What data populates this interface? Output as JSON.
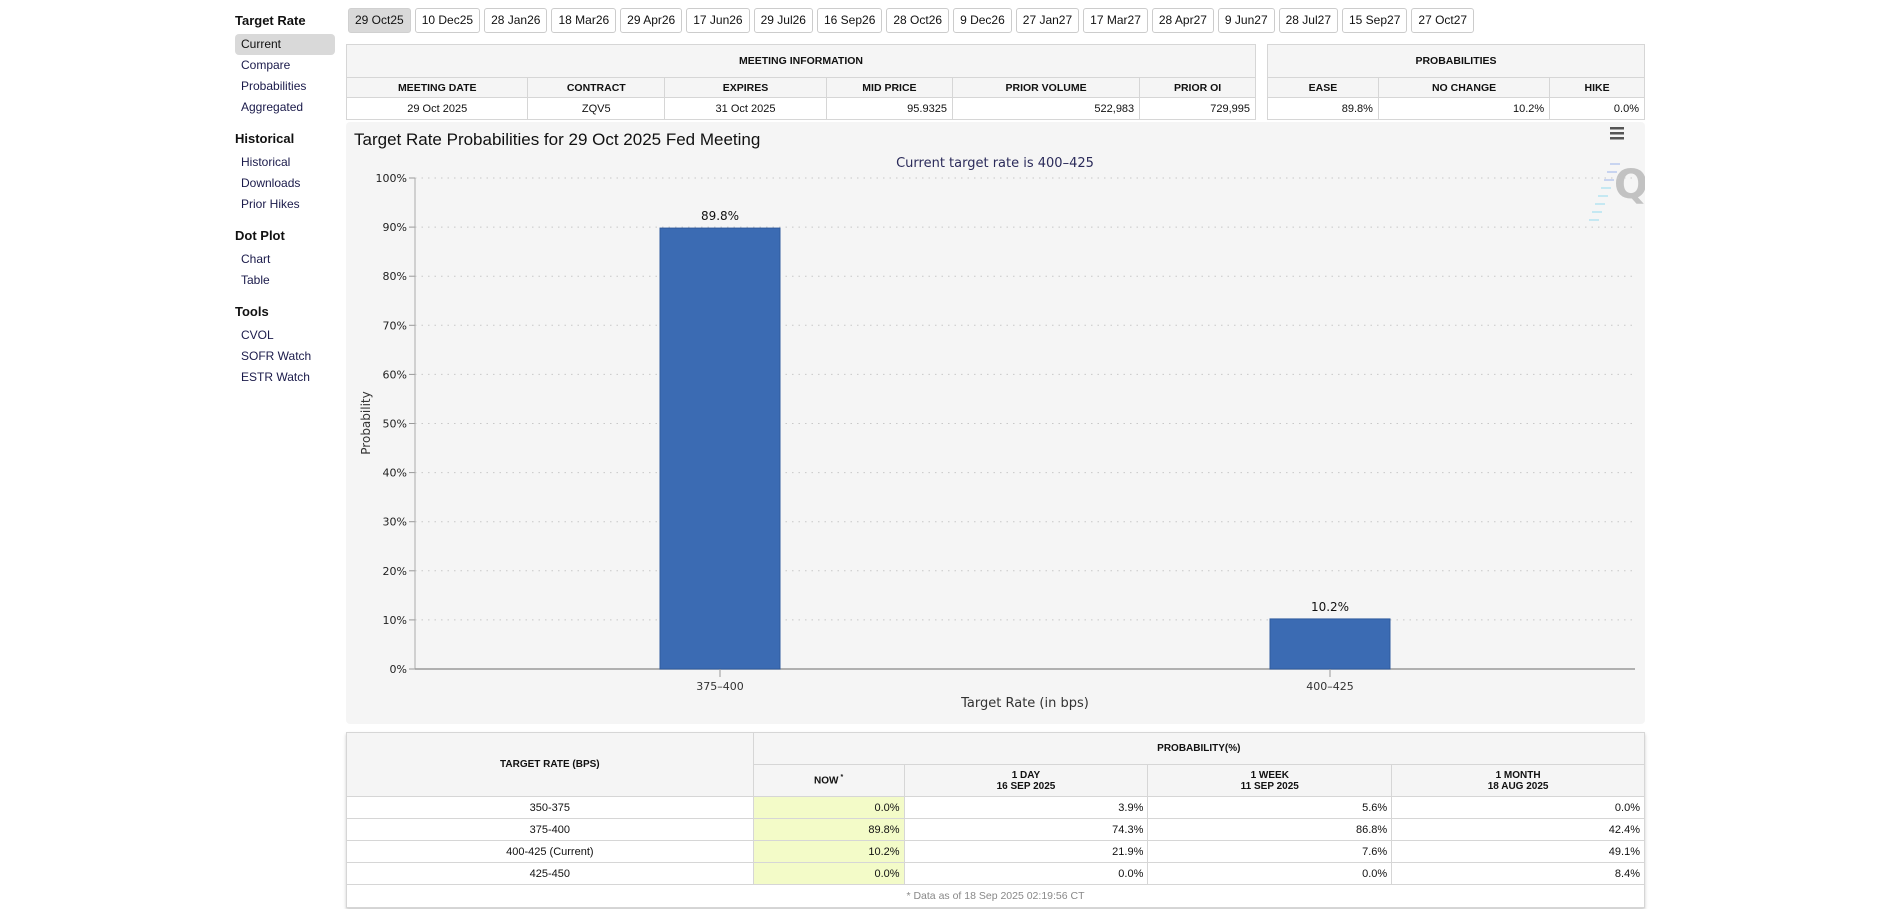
{
  "nav": {
    "groups": [
      {
        "title": "Target Rate",
        "items": [
          "Current",
          "Compare",
          "Probabilities",
          "Aggregated"
        ],
        "active": 0
      },
      {
        "title": "Historical",
        "items": [
          "Historical",
          "Downloads",
          "Prior Hikes"
        ]
      },
      {
        "title": "Dot Plot",
        "items": [
          "Chart",
          "Table"
        ]
      },
      {
        "title": "Tools",
        "items": [
          "CVOL",
          "SOFR Watch",
          "ESTR Watch"
        ]
      }
    ]
  },
  "tabs": [
    "29 Oct25",
    "10 Dec25",
    "28 Jan26",
    "18 Mar26",
    "29 Apr26",
    "17 Jun26",
    "29 Jul26",
    "16 Sep26",
    "28 Oct26",
    "9 Dec26",
    "27 Jan27",
    "17 Mar27",
    "28 Apr27",
    "9 Jun27",
    "28 Jul27",
    "15 Sep27",
    "27 Oct27"
  ],
  "meeting_info": {
    "title": "MEETING INFORMATION",
    "headers": [
      "MEETING DATE",
      "CONTRACT",
      "EXPIRES",
      "MID PRICE",
      "PRIOR VOLUME",
      "PRIOR OI"
    ],
    "values": [
      "29 Oct 2025",
      "ZQV5",
      "31 Oct 2025",
      "95.9325",
      "522,983",
      "729,995"
    ]
  },
  "probabilities": {
    "title": "PROBABILITIES",
    "headers": [
      "EASE",
      "NO CHANGE",
      "HIKE"
    ],
    "values": [
      "89.8%",
      "10.2%",
      "0.0%"
    ]
  },
  "chart_data": {
    "type": "bar",
    "title": "Target Rate Probabilities for 29 Oct 2025 Fed Meeting",
    "subtitle": "Current target rate is 400–425",
    "categories": [
      "375–400",
      "400–425"
    ],
    "values": [
      89.8,
      10.2
    ],
    "labels": [
      "89.8%",
      "10.2%"
    ],
    "xlabel": "Target Rate (in bps)",
    "ylabel": "Probability",
    "ylim": [
      0,
      100
    ],
    "yticks": [
      "0%",
      "10%",
      "20%",
      "30%",
      "40%",
      "50%",
      "60%",
      "70%",
      "80%",
      "90%",
      "100%"
    ],
    "bar_color": "#3b6bb3",
    "grid": true
  },
  "prob_table": {
    "col0": "TARGET RATE (BPS)",
    "group": "PROBABILITY(%)",
    "cols": [
      {
        "l1": "NOW",
        "l2": "",
        "mark": "*"
      },
      {
        "l1": "1 DAY",
        "l2": "16 SEP 2025"
      },
      {
        "l1": "1 WEEK",
        "l2": "11 SEP 2025"
      },
      {
        "l1": "1 MONTH",
        "l2": "18 AUG 2025"
      }
    ],
    "rows": [
      [
        "350-375",
        "0.0%",
        "3.9%",
        "5.6%",
        "0.0%"
      ],
      [
        "375-400",
        "89.8%",
        "74.3%",
        "86.8%",
        "42.4%"
      ],
      [
        "400-425 (Current)",
        "10.2%",
        "21.9%",
        "7.6%",
        "49.1%"
      ],
      [
        "425-450",
        "0.0%",
        "0.0%",
        "0.0%",
        "8.4%"
      ]
    ],
    "footnote": "* Data as of 18 Sep 2025 02:19:56 CT"
  }
}
